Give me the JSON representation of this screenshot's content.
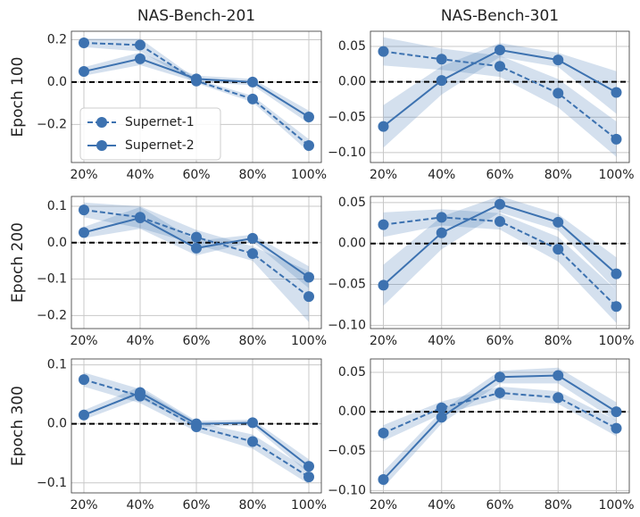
{
  "chart_data": [
    {
      "type": "line",
      "title": "NAS-Bench-201",
      "y_label": "Epoch 100",
      "legend": "center left",
      "reference_line": 0,
      "grid": true,
      "categories": [
        "20%",
        "40%",
        "60%",
        "80%",
        "100%"
      ],
      "ylim": [
        -0.38,
        0.24
      ],
      "yticks": [
        {
          "value": -0.2,
          "label": "−0.2"
        },
        {
          "value": 0,
          "label": "0.0"
        },
        0.2
      ],
      "series": [
        {
          "name": "Supernet-1",
          "color": "#3d72b0",
          "linestyle": "dashed",
          "values": [
            0.185,
            0.175,
            0.005,
            -0.08,
            -0.3
          ],
          "errors": [
            0.02,
            0.03,
            0.01,
            0.015,
            0.03
          ]
        },
        {
          "name": "Supernet-2",
          "color": "#3d72b0",
          "linestyle": "solid",
          "values": [
            0.05,
            0.11,
            0.015,
            0.0,
            -0.165
          ],
          "errors": [
            0.02,
            0.03,
            0.015,
            0.015,
            0.03
          ]
        }
      ]
    },
    {
      "type": "line",
      "title": "NAS-Bench-301",
      "reference_line": 0,
      "grid": true,
      "categories": [
        "20%",
        "40%",
        "60%",
        "80%",
        "100%"
      ],
      "ylim": [
        -0.114,
        0.0715
      ],
      "yticks": [
        {
          "value": -0.1,
          "label": "−0.10"
        },
        {
          "value": -0.05,
          "label": "−0.05"
        },
        {
          "value": 0,
          "label": "0.00"
        },
        0.05
      ],
      "series": [
        {
          "color": "#3d72b0",
          "linestyle": "dashed",
          "values": [
            0.043,
            0.032,
            0.022,
            -0.016,
            -0.081
          ],
          "errors": [
            0.02,
            0.015,
            0.015,
            0.02,
            0.025
          ]
        },
        {
          "color": "#3d72b0",
          "linestyle": "solid",
          "values": [
            -0.063,
            0.002,
            0.045,
            0.031,
            -0.015
          ],
          "errors": [
            0.03,
            0.02,
            0.01,
            0.01,
            0.03
          ]
        }
      ]
    },
    {
      "type": "line",
      "y_label": "Epoch 200",
      "reference_line": 0,
      "grid": true,
      "categories": [
        "20%",
        "40%",
        "60%",
        "80%",
        "100%"
      ],
      "ylim": [
        -0.236,
        0.127
      ],
      "yticks": [
        {
          "value": -0.2,
          "label": "−0.2"
        },
        {
          "value": -0.1,
          "label": "−0.1"
        },
        {
          "value": 0,
          "label": "0.0"
        },
        0.1
      ],
      "series": [
        {
          "color": "#3d72b0",
          "linestyle": "dashed",
          "values": [
            0.09,
            0.07,
            0.015,
            -0.03,
            -0.148
          ],
          "errors": [
            0.02,
            0.03,
            0.02,
            0.02,
            0.07
          ]
        },
        {
          "color": "#3d72b0",
          "linestyle": "solid",
          "values": [
            0.028,
            0.068,
            -0.015,
            0.012,
            -0.095
          ],
          "errors": [
            0.015,
            0.03,
            0.02,
            0.01,
            0.03
          ]
        }
      ]
    },
    {
      "type": "line",
      "reference_line": 0,
      "grid": true,
      "categories": [
        "20%",
        "40%",
        "60%",
        "80%",
        "100%"
      ],
      "ylim": [
        -0.104,
        0.0575
      ],
      "yticks": [
        {
          "value": -0.1,
          "label": "−0.10"
        },
        {
          "value": -0.05,
          "label": "−0.05"
        },
        {
          "value": 0,
          "label": "0.00"
        },
        0.05
      ],
      "series": [
        {
          "color": "#3d72b0",
          "linestyle": "dashed",
          "values": [
            0.023,
            0.032,
            0.027,
            -0.007,
            -0.077
          ],
          "errors": [
            0.015,
            0.01,
            0.01,
            0.015,
            0.02
          ]
        },
        {
          "color": "#3d72b0",
          "linestyle": "solid",
          "values": [
            -0.051,
            0.013,
            0.048,
            0.026,
            -0.037
          ],
          "errors": [
            0.025,
            0.02,
            0.01,
            0.01,
            0.02
          ]
        }
      ]
    },
    {
      "type": "line",
      "y_label": "Epoch 300",
      "reference_line": 0,
      "grid": true,
      "categories": [
        "20%",
        "40%",
        "60%",
        "80%",
        "100%"
      ],
      "ylim": [
        -0.117,
        0.11
      ],
      "yticks": [
        {
          "value": -0.1,
          "label": "−0.1"
        },
        {
          "value": 0,
          "label": "0.0"
        },
        0.1
      ],
      "series": [
        {
          "color": "#3d72b0",
          "linestyle": "dashed",
          "values": [
            0.075,
            0.047,
            -0.005,
            -0.03,
            -0.09
          ],
          "errors": [
            0.012,
            0.012,
            0.008,
            0.012,
            0.012
          ]
        },
        {
          "color": "#3d72b0",
          "linestyle": "solid",
          "values": [
            0.015,
            0.053,
            0.0,
            0.002,
            -0.072
          ],
          "errors": [
            0.008,
            0.01,
            0.005,
            0.005,
            0.012
          ]
        }
      ]
    },
    {
      "type": "line",
      "reference_line": 0,
      "grid": true,
      "categories": [
        "20%",
        "40%",
        "60%",
        "80%",
        "100%"
      ],
      "ylim": [
        -0.103,
        0.067
      ],
      "yticks": [
        {
          "value": -0.1,
          "label": "−0.10"
        },
        {
          "value": -0.05,
          "label": "−0.05"
        },
        {
          "value": 0,
          "label": "0.00"
        },
        0.05
      ],
      "series": [
        {
          "color": "#3d72b0",
          "linestyle": "dashed",
          "values": [
            -0.027,
            0.005,
            0.024,
            0.018,
            -0.021
          ],
          "errors": [
            0.01,
            0.008,
            0.008,
            0.008,
            0.01
          ]
        },
        {
          "color": "#3d72b0",
          "linestyle": "solid",
          "values": [
            -0.086,
            -0.007,
            0.044,
            0.046,
            0.0
          ],
          "errors": [
            0.01,
            0.008,
            0.008,
            0.01,
            0.012
          ]
        }
      ]
    }
  ]
}
